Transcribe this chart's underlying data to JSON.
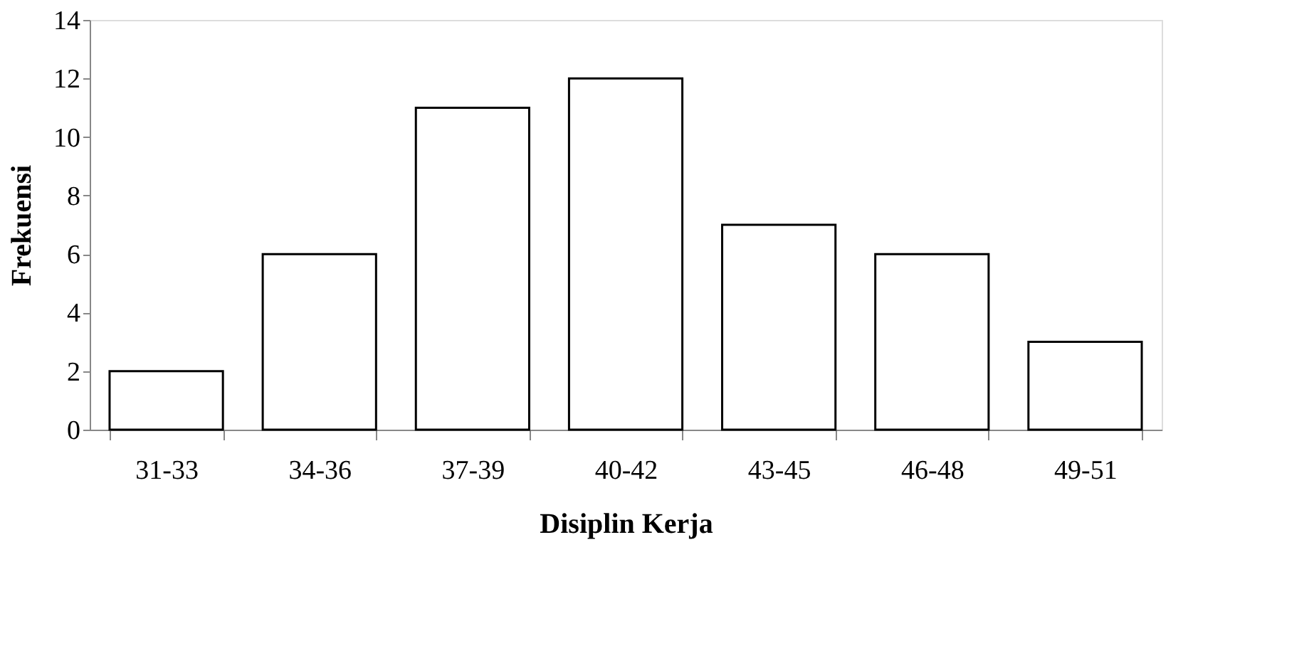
{
  "chart_data": {
    "type": "bar",
    "xlabel": "Disiplin Kerja",
    "ylabel": "Frekuensi",
    "categories": [
      "31-33",
      "34-36",
      "37-39",
      "40-42",
      "43-45",
      "46-48",
      "49-51"
    ],
    "values": [
      2,
      6,
      11,
      12,
      7,
      6,
      3
    ],
    "color": "#ffffff",
    "ylim": [
      0,
      14
    ],
    "yticks": [
      0,
      2,
      4,
      6,
      8,
      10,
      12,
      14
    ],
    "grid": false
  }
}
